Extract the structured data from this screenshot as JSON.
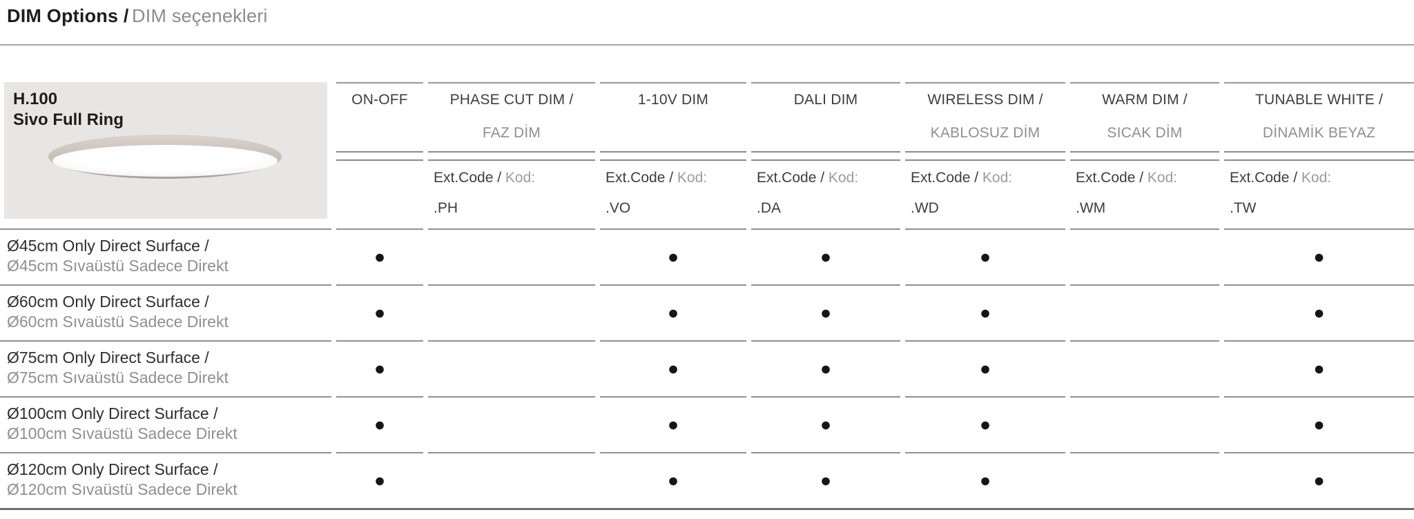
{
  "page": {
    "title_en": "DIM Options /",
    "title_tr": "DIM seçenekleri"
  },
  "product": {
    "model": "H.100",
    "name": "Sivo Full Ring"
  },
  "columns": [
    {
      "id": "on-off",
      "label_en": "ON-OFF",
      "label_tr": "",
      "ext_en": "",
      "ext_tr": "",
      "code": ""
    },
    {
      "id": "phase-cut-dim",
      "label_en": "PHASE CUT DIM /",
      "label_tr": "FAZ DİM",
      "ext_en": "Ext.Code /",
      "ext_tr": "Kod:",
      "code": ".PH"
    },
    {
      "id": "1-10v-dim",
      "label_en": "1-10V DIM",
      "label_tr": "",
      "ext_en": "Ext.Code /",
      "ext_tr": "Kod:",
      "code": ".VO"
    },
    {
      "id": "dali-dim",
      "label_en": "DALI DIM",
      "label_tr": "",
      "ext_en": "Ext.Code /",
      "ext_tr": "Kod:",
      "code": ".DA"
    },
    {
      "id": "wireless-dim",
      "label_en": "WIRELESS DIM /",
      "label_tr": "KABLOSUZ DİM",
      "ext_en": "Ext.Code /",
      "ext_tr": "Kod:",
      "code": ".WD"
    },
    {
      "id": "warm-dim",
      "label_en": "WARM DIM /",
      "label_tr": "SICAK DİM",
      "ext_en": "Ext.Code /",
      "ext_tr": "Kod:",
      "code": ".WM"
    },
    {
      "id": "tunable-white",
      "label_en": "TUNABLE WHITE /",
      "label_tr": "DİNAMİK BEYAZ",
      "ext_en": "Ext.Code /",
      "ext_tr": "Kod:",
      "code": ".TW"
    }
  ],
  "rows": [
    {
      "label_en": "Ø45cm Only Direct Surface /",
      "label_tr": "Ø45cm Sıvaüstü Sadece Direkt",
      "dots": [
        "●",
        "",
        "●",
        "●",
        "●",
        "",
        "●"
      ]
    },
    {
      "label_en": "Ø60cm Only Direct Surface /",
      "label_tr": "Ø60cm Sıvaüstü Sadece Direkt",
      "dots": [
        "●",
        "",
        "●",
        "●",
        "●",
        "",
        "●"
      ]
    },
    {
      "label_en": "Ø75cm Only Direct Surface /",
      "label_tr": "Ø75cm Sıvaüstü Sadece Direkt",
      "dots": [
        "●",
        "",
        "●",
        "●",
        "●",
        "",
        "●"
      ]
    },
    {
      "label_en": "Ø100cm Only Direct Surface /",
      "label_tr": "Ø100cm Sıvaüstü Sadece Direkt",
      "dots": [
        "●",
        "",
        "●",
        "●",
        "●",
        "",
        "●"
      ]
    },
    {
      "label_en": "Ø120cm Only Direct Surface /",
      "label_tr": "Ø120cm Sıvaüstü Sadece Direkt",
      "dots": [
        "●",
        "",
        "●",
        "●",
        "●",
        "",
        "●"
      ]
    }
  ],
  "colors": {
    "text_dark": "#1d1d1b",
    "text_gray": "#8f8f8e",
    "rule_gray": "#909090",
    "product_box_bg": "#e8e6e4",
    "dot": "#161616"
  }
}
